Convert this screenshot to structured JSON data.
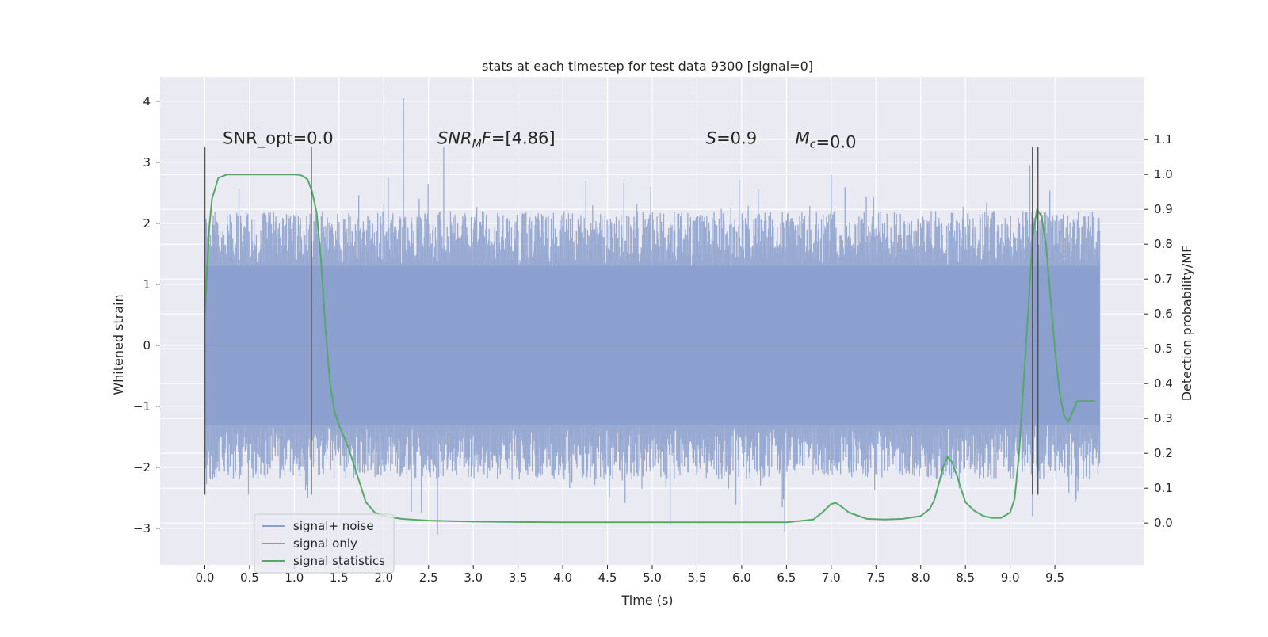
{
  "chart_data": {
    "type": "line",
    "title": "stats at each timestep for test data 9300 [signal=0]",
    "xlabel": "Time (s)",
    "ylabel": "Whitened strain",
    "y2label": "Detection probability/MF",
    "xlim": [
      -0.5,
      10.5
    ],
    "ylim": [
      -3.6,
      4.4
    ],
    "y2lim": [
      -0.12,
      1.28
    ],
    "xticks": [
      0.0,
      0.5,
      1.0,
      1.5,
      2.0,
      2.5,
      3.0,
      3.5,
      4.0,
      4.5,
      5.0,
      5.5,
      6.0,
      6.5,
      7.0,
      7.5,
      8.0,
      8.5,
      9.0,
      9.5
    ],
    "xtick_labels": [
      "0.0",
      "0.5",
      "1.0",
      "1.5",
      "2.0",
      "2.5",
      "3.0",
      "3.5",
      "4.0",
      "4.5",
      "5.0",
      "5.5",
      "6.0",
      "6.5",
      "7.0",
      "7.5",
      "8.0",
      "8.5",
      "9.0",
      "9.5"
    ],
    "yticks": [
      -3,
      -2,
      -1,
      0,
      1,
      2,
      3,
      4
    ],
    "ytick_labels": [
      "−3",
      "−2",
      "−1",
      "0",
      "1",
      "2",
      "3",
      "4"
    ],
    "y2ticks": [
      0.0,
      0.1,
      0.2,
      0.3,
      0.4,
      0.5,
      0.6,
      0.7,
      0.8,
      0.9,
      1.0,
      1.1
    ],
    "y2tick_labels": [
      "0.0",
      "0.1",
      "0.2",
      "0.3",
      "0.4",
      "0.5",
      "0.6",
      "0.7",
      "0.8",
      "0.9",
      "1.0",
      "1.1"
    ],
    "grid": true,
    "legend_position": "lower-left",
    "series": [
      {
        "name": "signal+ noise",
        "color": "#8a9fcd",
        "kind": "noise-band",
        "x_range": [
          0.0,
          10.0
        ],
        "core_range": [
          -1.3,
          1.3
        ],
        "envelope_typical": [
          -2.2,
          2.2
        ],
        "peaks": [
          {
            "x": 2.22,
            "y": 4.05
          },
          {
            "x": 2.67,
            "y": 3.25
          },
          {
            "x": 2.05,
            "y": 2.75
          },
          {
            "x": 7.0,
            "y": 2.8
          },
          {
            "x": 9.22,
            "y": 2.95
          },
          {
            "x": 2.6,
            "y": -3.1
          },
          {
            "x": 6.48,
            "y": -3.05
          },
          {
            "x": 5.2,
            "y": -2.95
          },
          {
            "x": 9.25,
            "y": -2.8
          },
          {
            "x": 2.42,
            "y": -2.75
          }
        ]
      },
      {
        "name": "signal only",
        "color": "#dd8452",
        "x": [
          0.0,
          10.0
        ],
        "y": [
          0.0,
          0.0
        ]
      },
      {
        "name": "signal statistics",
        "color": "#55a868",
        "axis": "right",
        "x": [
          0.0,
          0.05,
          0.08,
          0.15,
          0.25,
          0.4,
          0.6,
          0.8,
          1.0,
          1.05,
          1.1,
          1.15,
          1.2,
          1.25,
          1.3,
          1.35,
          1.4,
          1.45,
          1.5,
          1.55,
          1.6,
          1.7,
          1.8,
          1.9,
          2.0,
          2.2,
          2.5,
          3.0,
          3.5,
          4.0,
          4.5,
          5.0,
          5.5,
          6.0,
          6.5,
          6.8,
          6.9,
          7.0,
          7.05,
          7.1,
          7.2,
          7.4,
          7.6,
          7.8,
          8.0,
          8.1,
          8.15,
          8.2,
          8.25,
          8.3,
          8.35,
          8.4,
          8.45,
          8.5,
          8.6,
          8.7,
          8.8,
          8.9,
          9.0,
          9.05,
          9.1,
          9.15,
          9.2,
          9.25,
          9.3,
          9.35,
          9.4,
          9.45,
          9.5,
          9.55,
          9.6,
          9.65,
          9.7,
          9.75,
          9.8,
          9.85,
          9.9,
          9.95
        ],
        "y": [
          0.6,
          0.85,
          0.93,
          0.99,
          1.0,
          1.0,
          1.0,
          1.0,
          1.0,
          0.999,
          0.995,
          0.985,
          0.95,
          0.89,
          0.75,
          0.55,
          0.4,
          0.32,
          0.28,
          0.25,
          0.22,
          0.14,
          0.06,
          0.03,
          0.02,
          0.012,
          0.007,
          0.004,
          0.003,
          0.002,
          0.002,
          0.002,
          0.002,
          0.002,
          0.002,
          0.01,
          0.03,
          0.055,
          0.058,
          0.05,
          0.03,
          0.012,
          0.01,
          0.012,
          0.02,
          0.04,
          0.065,
          0.11,
          0.16,
          0.19,
          0.175,
          0.14,
          0.1,
          0.06,
          0.035,
          0.02,
          0.015,
          0.015,
          0.03,
          0.07,
          0.2,
          0.4,
          0.6,
          0.82,
          0.9,
          0.88,
          0.8,
          0.65,
          0.5,
          0.38,
          0.31,
          0.29,
          0.32,
          0.35,
          0.35,
          0.35,
          0.35,
          0.35
        ]
      }
    ],
    "vlines": [
      {
        "x": 0.0,
        "y_range": [
          -2.45,
          3.25
        ],
        "color": "#555555"
      },
      {
        "x": 1.19,
        "y_range": [
          -2.45,
          3.25
        ],
        "color": "#555555"
      },
      {
        "x": 9.25,
        "y_range": [
          -2.45,
          3.25
        ],
        "color": "#555555"
      },
      {
        "x": 9.31,
        "y_range": [
          -2.45,
          3.25
        ],
        "color": "#555555"
      }
    ],
    "annotations": [
      {
        "id": "snr-opt",
        "prefix": "SNR_opt=0.0",
        "x": 0.2,
        "y": 3.3
      },
      {
        "id": "snr-mf",
        "sym": "SNR",
        "sub": "M",
        "after_sub": "F",
        "value": "=[4.86]",
        "x": 2.6,
        "y": 3.3
      },
      {
        "id": "s",
        "sym": "S",
        "value": "=0.9",
        "x": 5.6,
        "y": 3.3
      },
      {
        "id": "mc",
        "sym": "M",
        "sub": "c",
        "value": "=0.0",
        "x": 6.6,
        "y": 3.3
      }
    ],
    "colors": {
      "plot_bg": "#eaeaf2",
      "grid": "#ffffff",
      "vline": "#555555"
    }
  }
}
